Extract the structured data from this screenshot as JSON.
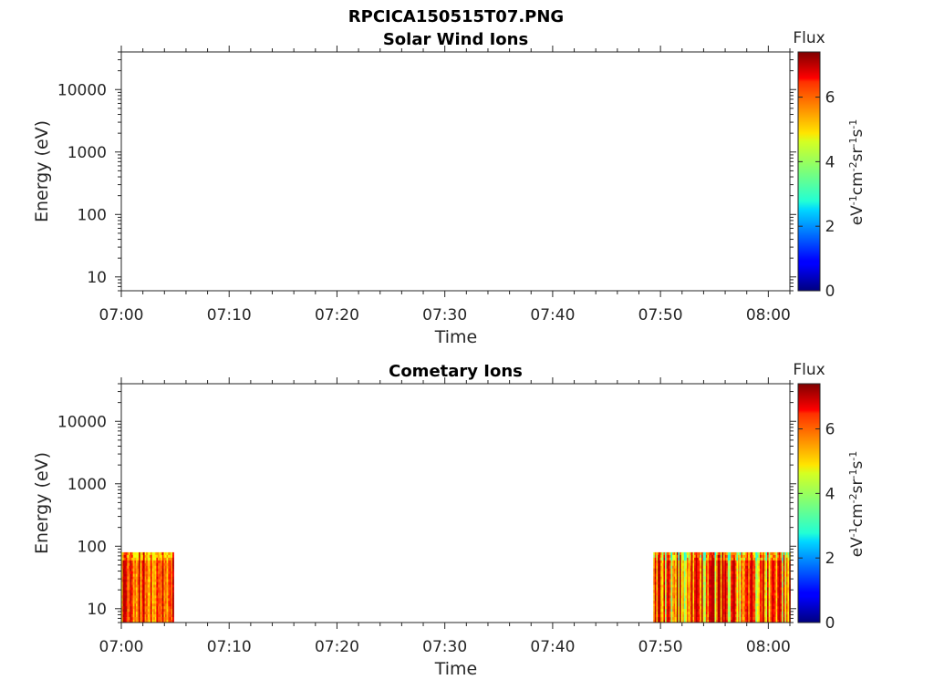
{
  "figure": {
    "title": "RPCICA150515T07.PNG"
  },
  "chart_data": [
    {
      "type": "heatmap",
      "title": "Solar Wind Ions",
      "xlabel": "Time",
      "ylabel": "Energy (eV)",
      "x_ticks": [
        "07:00",
        "07:10",
        "07:20",
        "07:30",
        "07:40",
        "07:50",
        "08:00"
      ],
      "xlim": [
        "07:00",
        "08:02"
      ],
      "y_scale": "log",
      "y_ticks": [
        10,
        100,
        1000,
        10000
      ],
      "y_tick_labels": [
        "10",
        "100",
        "1000",
        "10000"
      ],
      "ylim": [
        6,
        40000
      ],
      "colorbar": {
        "label_top": "Flux",
        "unit_label": "eV-1cm-2sr-1s-1",
        "ticks": [
          0,
          2,
          4,
          6
        ],
        "tick_labels": [
          "0",
          "2",
          "4",
          "6"
        ],
        "range": [
          0,
          7.4
        ],
        "colormap": "jet"
      },
      "data_blocks": []
    },
    {
      "type": "heatmap",
      "title": "Cometary Ions",
      "xlabel": "Time",
      "ylabel": "Energy (eV)",
      "x_ticks": [
        "07:00",
        "07:10",
        "07:20",
        "07:30",
        "07:40",
        "07:50",
        "08:00"
      ],
      "xlim": [
        "07:00",
        "08:02"
      ],
      "y_scale": "log",
      "y_ticks": [
        10,
        100,
        1000,
        10000
      ],
      "y_tick_labels": [
        "10",
        "100",
        "1000",
        "10000"
      ],
      "ylim": [
        6,
        40000
      ],
      "colorbar": {
        "label_top": "Flux",
        "unit_label": "eV-1cm-2sr-1s-1",
        "ticks": [
          0,
          2,
          4,
          6
        ],
        "tick_labels": [
          "0",
          "2",
          "4",
          "6"
        ],
        "range": [
          0,
          7.4
        ],
        "colormap": "jet"
      },
      "data_blocks": [
        {
          "t_start": "07:00",
          "t_end": "07:04:45",
          "energy_min": 6,
          "energy_max": 80,
          "flux_min": 4.5,
          "flux_max": 7.0,
          "flux_mean": 6.0
        },
        {
          "t_start": "07:49:20",
          "t_end": "08:02",
          "energy_min": 6,
          "energy_max": 80,
          "flux_min": 3.0,
          "flux_max": 7.0,
          "flux_mean": 5.6
        }
      ]
    }
  ]
}
